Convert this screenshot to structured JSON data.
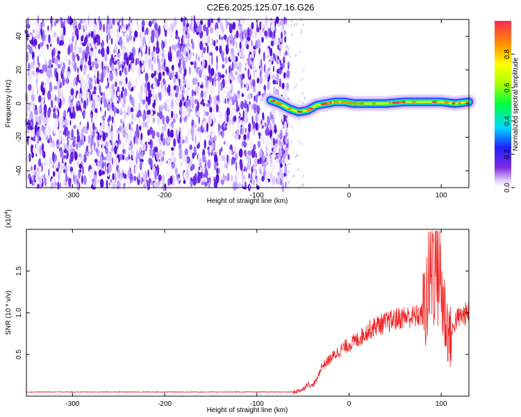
{
  "title": "C2E6.2025.125.07.16.G26",
  "chart_data": [
    {
      "type": "heatmap",
      "xlabel": "Height of straight line (km)",
      "ylabel": "Frequency (Hz)",
      "xlim": [
        -350,
        130
      ],
      "ylim": [
        -50,
        50
      ],
      "xticks": [
        -300,
        -200,
        -100,
        0,
        100
      ],
      "yticks": [
        -40,
        -20,
        0,
        20,
        40
      ],
      "colorbar": {
        "label": "Normalized spectral amplitude",
        "range": [
          0,
          1
        ],
        "ticks": [
          "0.0",
          "0.2",
          "0.4",
          "0.6",
          "0.8"
        ]
      },
      "noise_region_x": [
        -350,
        -70
      ],
      "signal_track": {
        "x": [
          -85,
          -75,
          -65,
          -55,
          -45,
          -35,
          -25,
          -15,
          -5,
          5,
          20,
          40,
          60,
          80,
          100,
          115,
          130
        ],
        "frequency": [
          2,
          0,
          -3,
          -5,
          -4,
          -1,
          0,
          1,
          1,
          0,
          0,
          0,
          1,
          1,
          1,
          0,
          1
        ]
      }
    },
    {
      "type": "line",
      "xlabel": "Height of straight line (km)",
      "ylabel": "SNR (10 * v/v)",
      "scale_note": "(x10",
      "scale_exp": "4",
      "xlim": [
        -350,
        130
      ],
      "ylim": [
        0,
        2
      ],
      "xticks": [
        -300,
        -200,
        -100,
        0,
        100
      ],
      "yticks": [
        "0.5",
        "1.0",
        "1.5"
      ],
      "series": [
        {
          "color": "#ee2222",
          "x": [
            -350,
            -60,
            -50,
            -45,
            -40,
            -35,
            -30,
            -20,
            -10,
            0,
            10,
            20,
            30,
            40,
            50,
            60,
            70,
            80,
            85,
            90,
            95,
            100,
            105,
            110,
            115,
            120,
            130
          ],
          "y": [
            0.05,
            0.05,
            0.08,
            0.15,
            0.12,
            0.2,
            0.35,
            0.45,
            0.55,
            0.62,
            0.68,
            0.78,
            0.85,
            0.88,
            0.92,
            0.95,
            0.95,
            0.98,
            1.2,
            1.6,
            1.8,
            1.3,
            0.9,
            0.7,
            0.9,
            0.95,
            1.0
          ]
        }
      ]
    }
  ]
}
